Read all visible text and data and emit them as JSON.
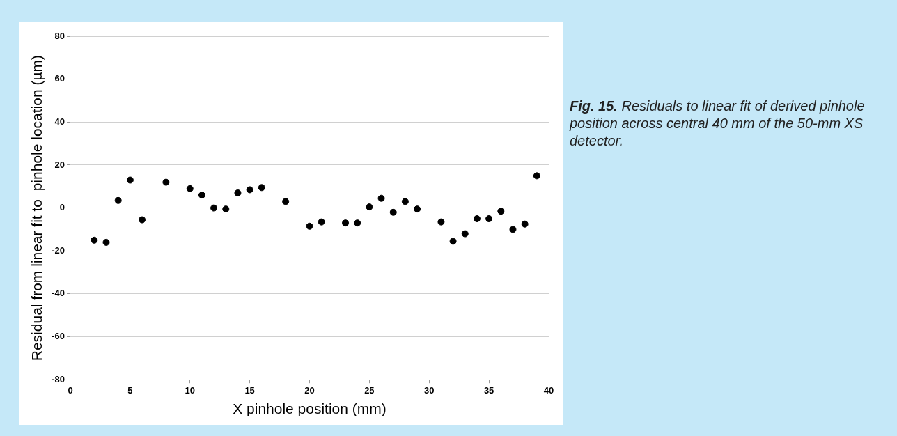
{
  "chart_data": {
    "type": "scatter",
    "xlabel": "X pinhole position (mm)",
    "ylabel": "Residual from linear fit to  pinhole location (µm)",
    "annotations": [
      "Fig. 15.",
      "Residuals to linear fit of derived pinhole position across central 40 mm of the 50-mm XS detector."
    ],
    "x": [
      2,
      3,
      4,
      5,
      6,
      8,
      10,
      11,
      12,
      13,
      14,
      15,
      16,
      18,
      20,
      21,
      23,
      24,
      25,
      26,
      27,
      28,
      29,
      31,
      32,
      33,
      34,
      35,
      36,
      37,
      38,
      39
    ],
    "series": [
      {
        "color": "#000000",
        "values": [
          -15,
          -16,
          3.5,
          13,
          -5.5,
          12,
          9,
          6,
          0,
          -0.5,
          7,
          8.5,
          9.5,
          3,
          -8.5,
          -6.5,
          -7,
          -7,
          0.5,
          4.5,
          -2,
          3,
          -0.5,
          -6.5,
          -15.5,
          -12,
          -5,
          -5,
          -1.5,
          -10,
          -7.5,
          15
        ]
      }
    ],
    "xlim": [
      0,
      40
    ],
    "xticks": [
      0,
      5,
      10,
      15,
      20,
      25,
      30,
      35,
      40
    ],
    "ylim": [
      -80,
      80
    ],
    "yticks": [
      -80,
      -60,
      -40,
      -20,
      0,
      20,
      40,
      60,
      80
    ],
    "grid": "y",
    "legend": false,
    "marker": "circle"
  }
}
